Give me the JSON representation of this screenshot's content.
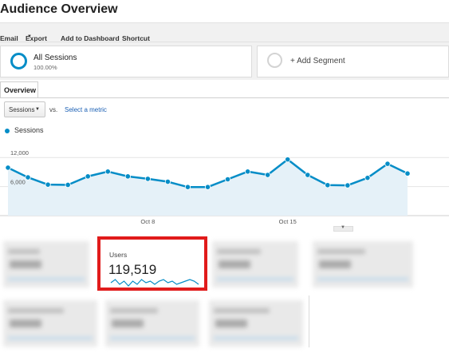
{
  "page": {
    "title": "Audience Overview"
  },
  "toolbar": {
    "email": "Email",
    "export": "Export",
    "add_to_dashboard": "Add to Dashboard",
    "shortcut": "Shortcut"
  },
  "segments": {
    "all": {
      "name": "All Sessions",
      "percent": "100.00%"
    },
    "add": {
      "label": "+ Add Segment"
    }
  },
  "tabs": {
    "overview": "Overview"
  },
  "metric": {
    "selected": "Sessions",
    "vs": "vs.",
    "select_link": "Select a metric"
  },
  "legend": {
    "series_name": "Sessions"
  },
  "chart_data": {
    "type": "area",
    "series": [
      {
        "name": "Sessions",
        "values": [
          9900,
          7900,
          6400,
          6350,
          8100,
          9100,
          8100,
          7600,
          7000,
          5900,
          5900,
          7500,
          9100,
          8400,
          11600,
          8400,
          6300,
          6250,
          7800,
          10700,
          8700
        ]
      }
    ],
    "y_ticks": [
      "12,000",
      "6,000"
    ],
    "x_tick_labels": [
      {
        "label": "Oct 8",
        "index": 7
      },
      {
        "label": "Oct 15",
        "index": 14
      }
    ],
    "ylim": [
      0,
      15000
    ],
    "grid": true,
    "color": "#058dc7",
    "fill_color": "#e5f1f8"
  },
  "users_card": {
    "label": "Users",
    "value": "119,519",
    "highlight_color": "#e11b1b",
    "spark_values": [
      5,
      7,
      4,
      6,
      3,
      6,
      4,
      7,
      5,
      6,
      4,
      6,
      7,
      5,
      6,
      4,
      5,
      6,
      7,
      6,
      4
    ]
  }
}
